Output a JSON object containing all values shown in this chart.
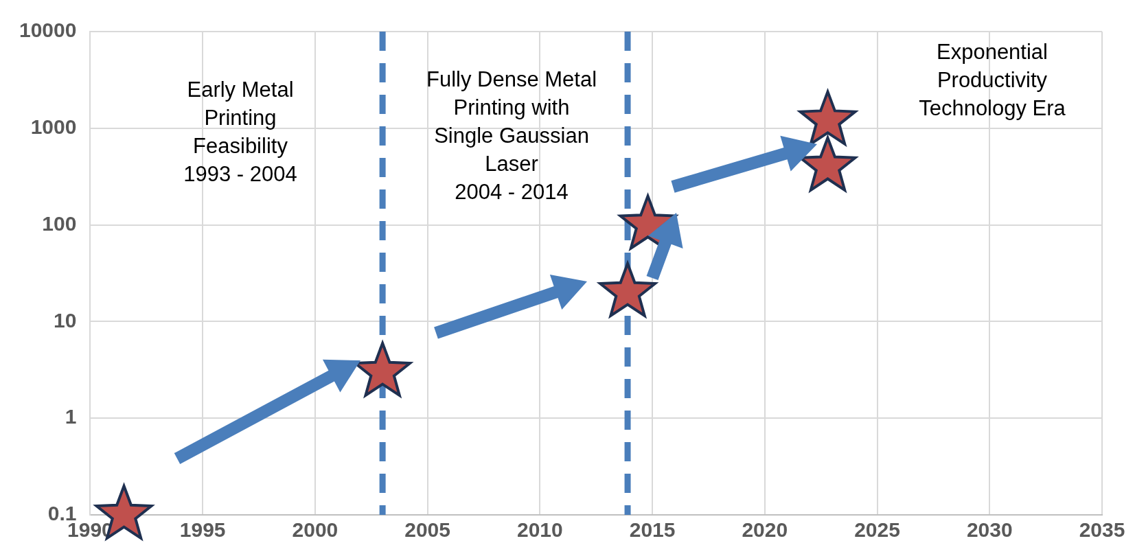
{
  "chart_data": {
    "type": "scatter",
    "x": [
      1991.5,
      2003,
      2013.9,
      2014.8,
      2022.8,
      2022.8
    ],
    "series": [
      {
        "color": "#c0504d",
        "values": [
          0.1,
          3,
          20,
          100,
          1200,
          400
        ]
      }
    ],
    "marker": "star",
    "log": "y",
    "xlim": [
      1990,
      2035
    ],
    "xticks": [
      1990,
      1995,
      2000,
      2005,
      2010,
      2015,
      2020,
      2025,
      2030,
      2035
    ],
    "ylim": [
      0.1,
      10000
    ],
    "yticks": [
      0.1,
      1,
      10,
      100,
      1000,
      10000
    ],
    "grid": true,
    "ref_lines": [
      {
        "axis": "x",
        "value": 2003,
        "color": "#4a7ebb",
        "line_style": "dashed"
      },
      {
        "axis": "x",
        "value": 2013.9,
        "color": "#4a7ebb",
        "line_style": "dashed"
      }
    ],
    "annotations": [
      "Early Metal\nPrinting\nFeasibility\n1993 - 2004",
      "Fully Dense Metal\nPrinting with\nSingle Gaussian\nLaser\n2004 - 2014",
      "Exponential\nProductivity\nTechnology Era"
    ]
  }
}
